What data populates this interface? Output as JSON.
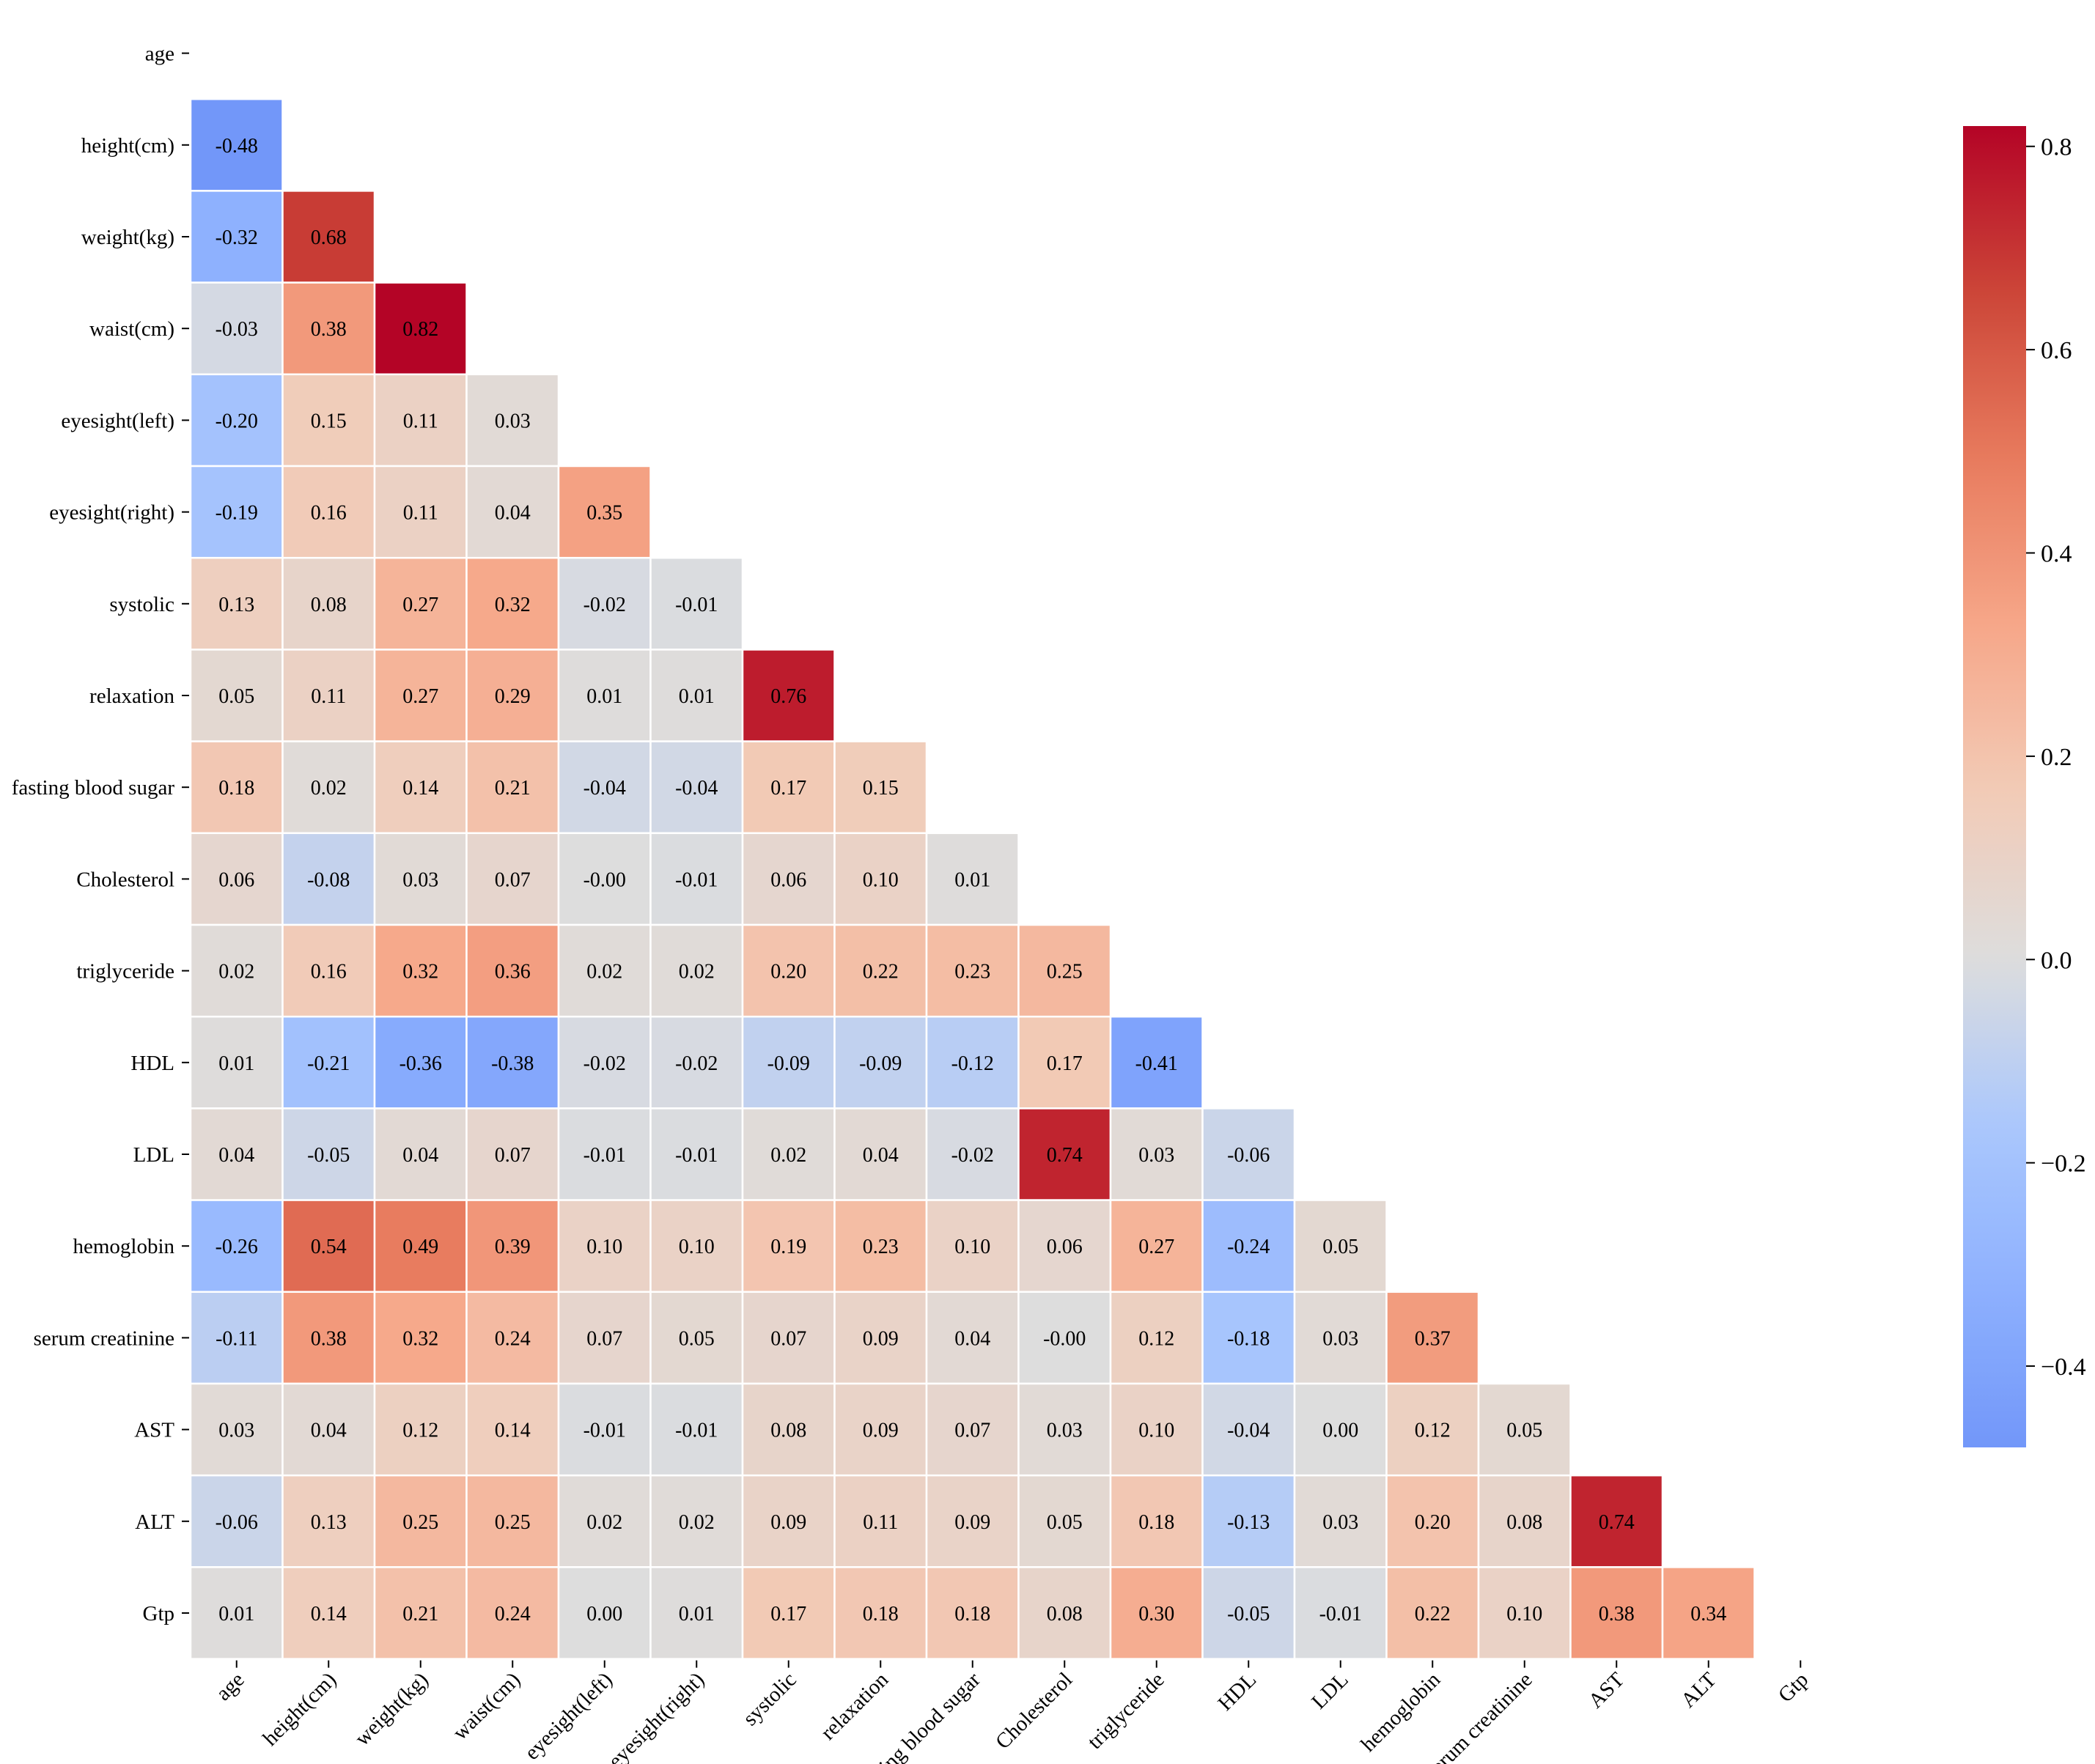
{
  "chart_data": {
    "type": "heatmap",
    "title": "",
    "xlabel": "",
    "ylabel": "",
    "colormap": "coolwarm",
    "mask": "upper triangle including diagonal",
    "value_range": [
      -0.48,
      0.82
    ],
    "labels": [
      "age",
      "height(cm)",
      "weight(kg)",
      "waist(cm)",
      "eyesight(left)",
      "eyesight(right)",
      "systolic",
      "relaxation",
      "fasting blood sugar",
      "Cholesterol",
      "triglyceride",
      "HDL",
      "LDL",
      "hemoglobin",
      "serum creatinine",
      "AST",
      "ALT",
      "Gtp"
    ],
    "rows": [
      [],
      [
        "-0.48"
      ],
      [
        "-0.32",
        "0.68"
      ],
      [
        "-0.03",
        "0.38",
        "0.82"
      ],
      [
        "-0.20",
        "0.15",
        "0.11",
        "0.03"
      ],
      [
        "-0.19",
        "0.16",
        "0.11",
        "0.04",
        "0.35"
      ],
      [
        "0.13",
        "0.08",
        "0.27",
        "0.32",
        "-0.02",
        "-0.01"
      ],
      [
        "0.05",
        "0.11",
        "0.27",
        "0.29",
        "0.01",
        "0.01",
        "0.76"
      ],
      [
        "0.18",
        "0.02",
        "0.14",
        "0.21",
        "-0.04",
        "-0.04",
        "0.17",
        "0.15"
      ],
      [
        "0.06",
        "-0.08",
        "0.03",
        "0.07",
        "-0.00",
        "-0.01",
        "0.06",
        "0.10",
        "0.01"
      ],
      [
        "0.02",
        "0.16",
        "0.32",
        "0.36",
        "0.02",
        "0.02",
        "0.20",
        "0.22",
        "0.23",
        "0.25"
      ],
      [
        "0.01",
        "-0.21",
        "-0.36",
        "-0.38",
        "-0.02",
        "-0.02",
        "-0.09",
        "-0.09",
        "-0.12",
        "0.17",
        "-0.41"
      ],
      [
        "0.04",
        "-0.05",
        "0.04",
        "0.07",
        "-0.01",
        "-0.01",
        "0.02",
        "0.04",
        "-0.02",
        "0.74",
        "0.03",
        "-0.06"
      ],
      [
        "-0.26",
        "0.54",
        "0.49",
        "0.39",
        "0.10",
        "0.10",
        "0.19",
        "0.23",
        "0.10",
        "0.06",
        "0.27",
        "-0.24",
        "0.05"
      ],
      [
        "-0.11",
        "0.38",
        "0.32",
        "0.24",
        "0.07",
        "0.05",
        "0.07",
        "0.09",
        "0.04",
        "-0.00",
        "0.12",
        "-0.18",
        "0.03",
        "0.37"
      ],
      [
        "0.03",
        "0.04",
        "0.12",
        "0.14",
        "-0.01",
        "-0.01",
        "0.08",
        "0.09",
        "0.07",
        "0.03",
        "0.10",
        "-0.04",
        "0.00",
        "0.12",
        "0.05"
      ],
      [
        "-0.06",
        "0.13",
        "0.25",
        "0.25",
        "0.02",
        "0.02",
        "0.09",
        "0.11",
        "0.09",
        "0.05",
        "0.18",
        "-0.13",
        "0.03",
        "0.20",
        "0.08",
        "0.74"
      ],
      [
        "0.01",
        "0.14",
        "0.21",
        "0.24",
        "0.00",
        "0.01",
        "0.17",
        "0.18",
        "0.18",
        "0.08",
        "0.30",
        "-0.05",
        "-0.01",
        "0.22",
        "0.10",
        "0.38",
        "0.34"
      ]
    ],
    "colorbar": {
      "ticks": [
        "0.8",
        "0.6",
        "0.4",
        "0.2",
        "0.0",
        "−0.2",
        "−0.4"
      ]
    }
  }
}
